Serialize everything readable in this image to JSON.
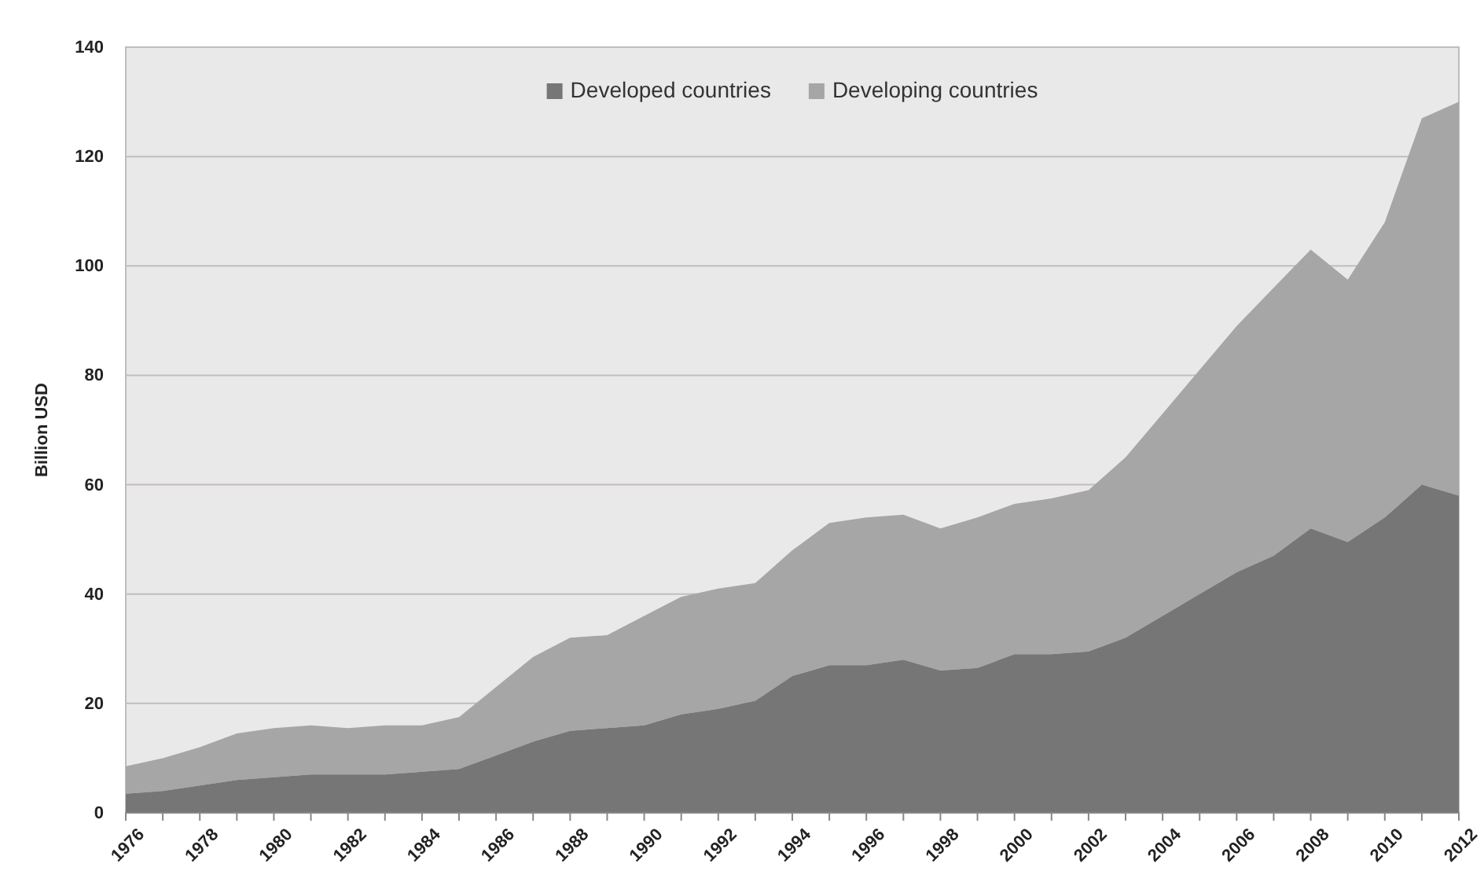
{
  "chart_data": {
    "type": "area",
    "stacked": true,
    "ylabel": "Billion  USD",
    "categories": [
      "1976",
      null,
      "1978",
      null,
      "1980",
      null,
      "1982",
      null,
      "1984",
      null,
      "1986",
      null,
      "1988",
      null,
      "1990",
      null,
      "1992",
      null,
      "1994",
      null,
      "1996",
      null,
      "1998",
      null,
      "2000",
      null,
      "2002",
      null,
      "2004",
      null,
      "2006",
      null,
      "2008",
      null,
      "2010",
      null,
      "2012"
    ],
    "series": [
      {
        "name": "Developed countries",
        "color": "#767676",
        "values": [
          3.5,
          4,
          5,
          6,
          6.5,
          7,
          7,
          7,
          7.5,
          8,
          10.5,
          13,
          15,
          15.5,
          16,
          18,
          19,
          20.5,
          25,
          27,
          27,
          28,
          26,
          26.5,
          29,
          29,
          29.5,
          32,
          36,
          40,
          44,
          47,
          52,
          49.5,
          54,
          60,
          58
        ]
      },
      {
        "name": "Developing countries",
        "color": "#a6a6a6",
        "values": [
          5,
          6,
          7,
          8.5,
          9,
          9,
          8.5,
          9,
          8.5,
          9.5,
          12.5,
          15.5,
          17,
          17,
          20,
          21.5,
          22,
          21.5,
          23,
          26,
          27,
          26.5,
          26,
          27.5,
          27.5,
          28.5,
          29.5,
          33,
          37,
          41,
          45,
          49,
          51,
          48,
          54,
          67,
          72
        ]
      }
    ],
    "ylim": [
      0,
      140
    ],
    "yticks": [
      0,
      20,
      40,
      60,
      80,
      100,
      120,
      140
    ],
    "grid": "y",
    "legend": "top"
  }
}
